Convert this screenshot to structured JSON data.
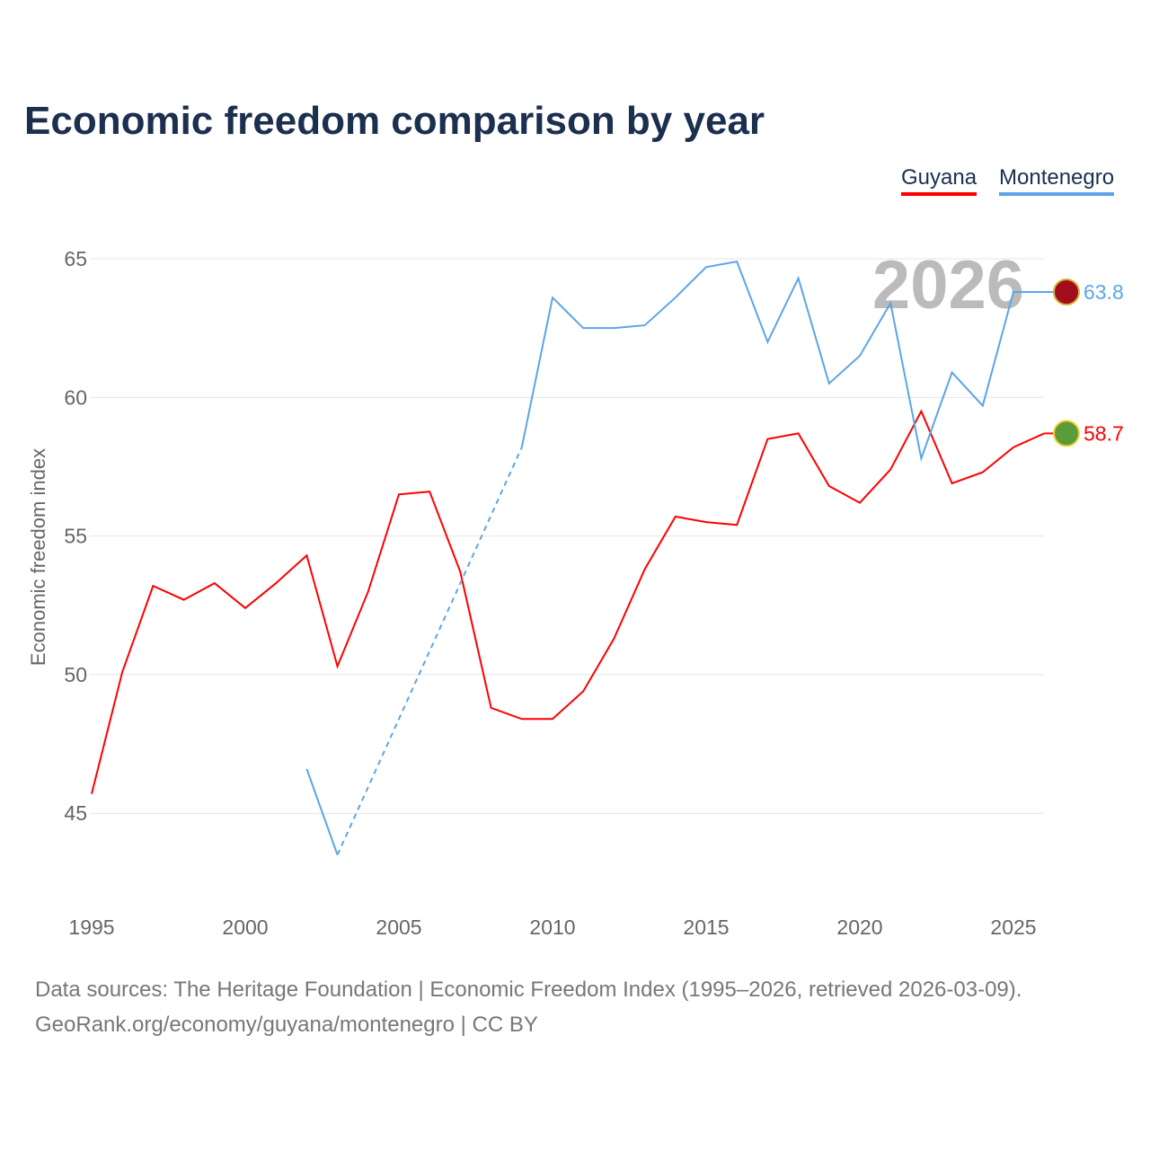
{
  "chart_data": {
    "type": "line",
    "title": "Economic freedom comparison by year",
    "ylabel": "Economic freedom index",
    "xlabel": "",
    "ylim": [
      42,
      67
    ],
    "xlim": [
      1995,
      2026
    ],
    "yticks": [
      45,
      50,
      55,
      60,
      65
    ],
    "xticks": [
      1995,
      2000,
      2005,
      2010,
      2015,
      2020,
      2025
    ],
    "year_label": "2026",
    "series": [
      {
        "name": "Guyana",
        "color": "#ff0000",
        "end_label": "58.7",
        "x": [
          1995,
          1996,
          1997,
          1998,
          1999,
          2000,
          2001,
          2002,
          2003,
          2004,
          2005,
          2006,
          2007,
          2008,
          2009,
          2010,
          2011,
          2012,
          2013,
          2014,
          2015,
          2016,
          2017,
          2018,
          2019,
          2020,
          2021,
          2022,
          2023,
          2024,
          2025,
          2026
        ],
        "y": [
          45.7,
          50.1,
          53.2,
          52.7,
          53.3,
          52.4,
          53.3,
          54.3,
          50.3,
          53.0,
          56.5,
          56.6,
          53.7,
          48.8,
          48.4,
          48.4,
          49.4,
          51.3,
          53.8,
          55.7,
          55.5,
          55.4,
          58.5,
          58.7,
          56.8,
          56.2,
          57.4,
          59.5,
          56.9,
          57.3,
          58.2,
          58.7
        ]
      },
      {
        "name": "Montenegro",
        "color": "#5ba5e8",
        "end_label": "63.8",
        "x": [
          2002,
          2003,
          2004,
          2005,
          2006,
          2007,
          2008,
          2009,
          2010,
          2011,
          2012,
          2013,
          2014,
          2015,
          2016,
          2017,
          2018,
          2019,
          2020,
          2021,
          2022,
          2023,
          2024,
          2025,
          2026
        ],
        "y": [
          46.6,
          43.5,
          null,
          null,
          null,
          null,
          null,
          58.2,
          63.6,
          62.5,
          62.5,
          62.6,
          63.6,
          64.7,
          64.9,
          62.0,
          64.3,
          60.5,
          61.5,
          63.4,
          57.8,
          60.9,
          59.7,
          63.8,
          63.8
        ]
      }
    ]
  },
  "footer": {
    "line1": "Data sources: The Heritage Foundation | Economic Freedom Index (1995–2026, retrieved 2026-03-09).",
    "line2": "GeoRank.org/economy/guyana/montenegro | CC BY"
  }
}
